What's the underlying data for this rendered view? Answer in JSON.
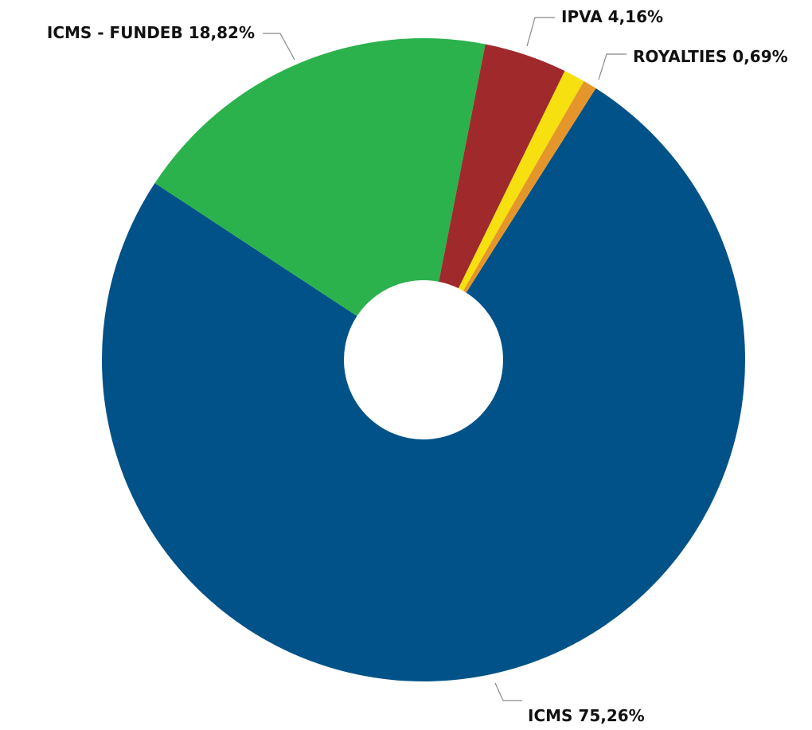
{
  "chart_data": {
    "type": "donut",
    "categories": [
      "ICMS",
      "ICMS - FUNDEB",
      "IPVA",
      null,
      "ROYALTIES"
    ],
    "values": [
      75.26,
      18.82,
      4.16,
      1.07,
      0.69
    ],
    "value_labels": [
      "75,26%",
      "18,82%",
      "4,16%",
      null,
      "0,69%"
    ],
    "colors": [
      "#005288",
      "#2bb24c",
      "#a0292c",
      "#f7e00f",
      "#e5962a"
    ]
  }
}
